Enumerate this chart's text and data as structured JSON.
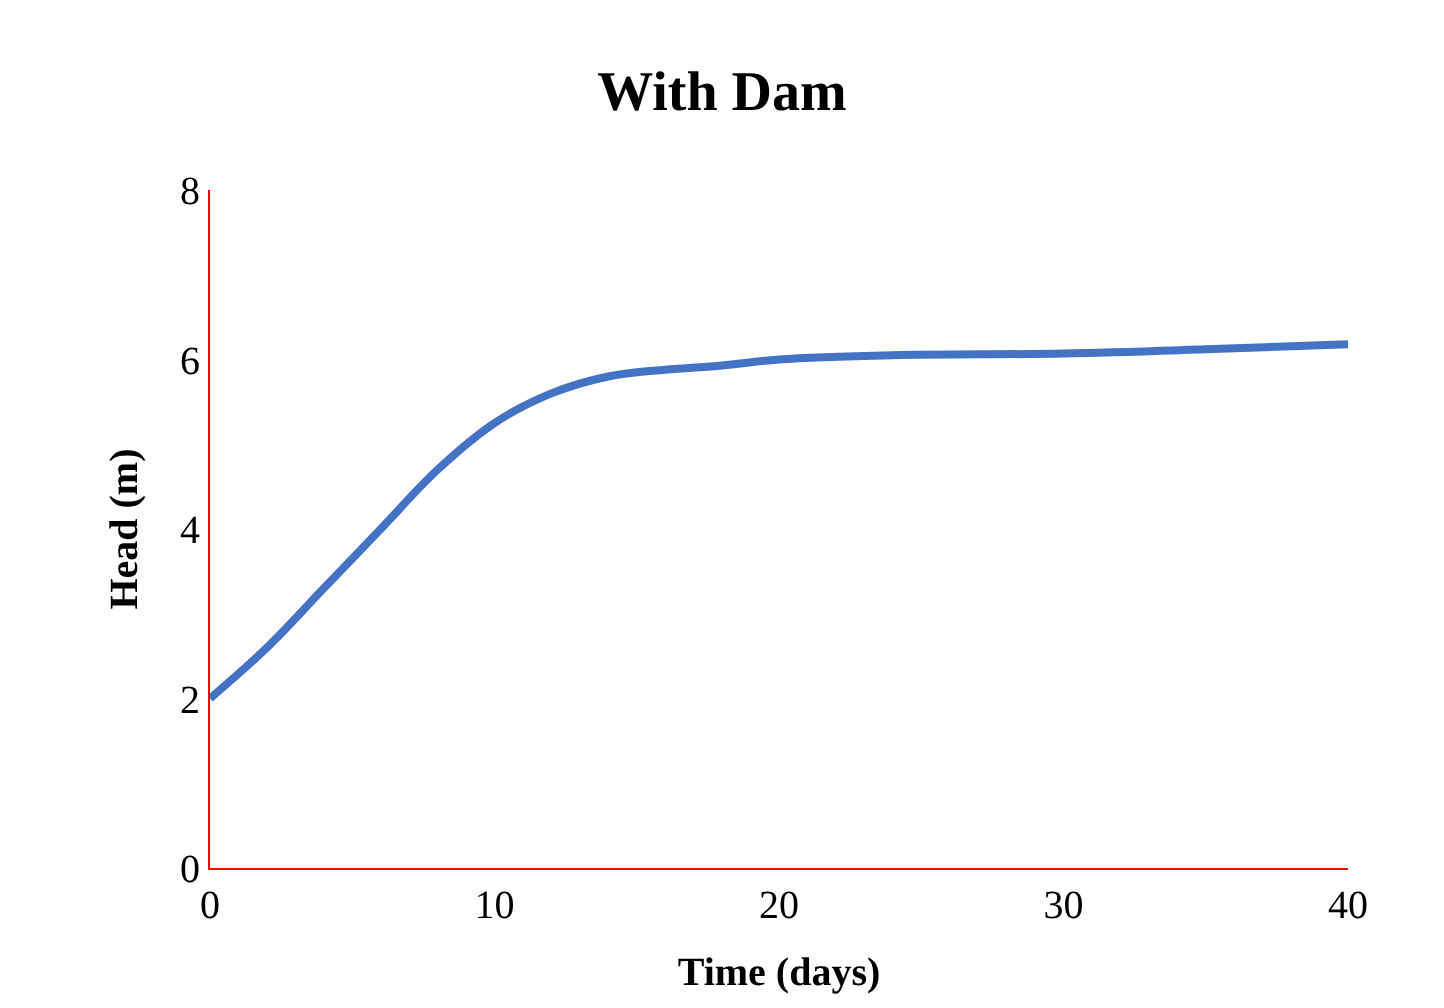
{
  "chart_data": {
    "type": "line",
    "title": "With Dam",
    "xlabel": "Time (days)",
    "ylabel": "Head (m)",
    "x": [
      0,
      2,
      4,
      6,
      8,
      10,
      12,
      14,
      16,
      18,
      20,
      24,
      30,
      35,
      40
    ],
    "series": [
      {
        "color": "#4472c4",
        "values": [
          2.0,
          2.6,
          3.3,
          4.0,
          4.7,
          5.25,
          5.6,
          5.8,
          5.88,
          5.93,
          6.0,
          6.05,
          6.07,
          6.12,
          6.18
        ]
      }
    ],
    "xlim": [
      0,
      40
    ],
    "xticks": [
      0,
      10,
      20,
      30,
      40
    ],
    "ylim": [
      0,
      8
    ],
    "yticks": [
      0,
      2,
      4,
      6,
      8
    ],
    "legend": false,
    "marker": "none",
    "line_style": "solid"
  }
}
